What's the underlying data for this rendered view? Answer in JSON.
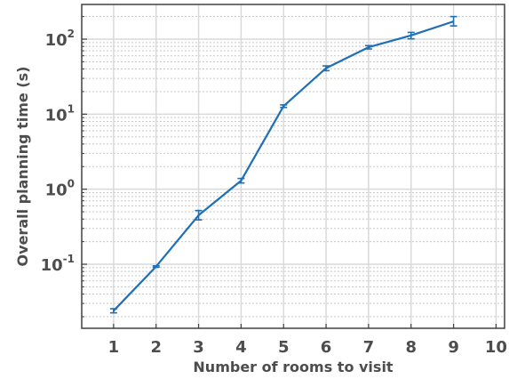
{
  "chart_data": {
    "type": "line",
    "xlabel": "Number of rooms to visit",
    "ylabel": "Overall planning time (s)",
    "xlim": [
      0.25,
      10.2
    ],
    "ylim": [
      0.014,
      290
    ],
    "yscale": "log",
    "grid": true,
    "xticks": [
      1,
      2,
      3,
      4,
      5,
      6,
      7,
      8,
      9,
      10
    ],
    "yticks": [
      {
        "value": 0.1,
        "base": "10",
        "exp": "-1"
      },
      {
        "value": 1,
        "base": "10",
        "exp": "0"
      },
      {
        "value": 10,
        "base": "10",
        "exp": "1"
      },
      {
        "value": 100,
        "base": "10",
        "exp": "2"
      }
    ],
    "series": [
      {
        "color": "#1f6fb5",
        "x": [
          1,
          2,
          3,
          4,
          5,
          6,
          7,
          8,
          9
        ],
        "y": [
          0.024,
          0.093,
          0.45,
          1.3,
          12.8,
          41,
          78,
          112,
          172
        ],
        "err_low": [
          0.0225,
          0.091,
          0.39,
          1.21,
          12.3,
          38,
          74,
          101,
          150
        ],
        "err_high": [
          0.0255,
          0.095,
          0.52,
          1.39,
          13.3,
          44,
          82,
          123,
          200
        ]
      }
    ]
  }
}
